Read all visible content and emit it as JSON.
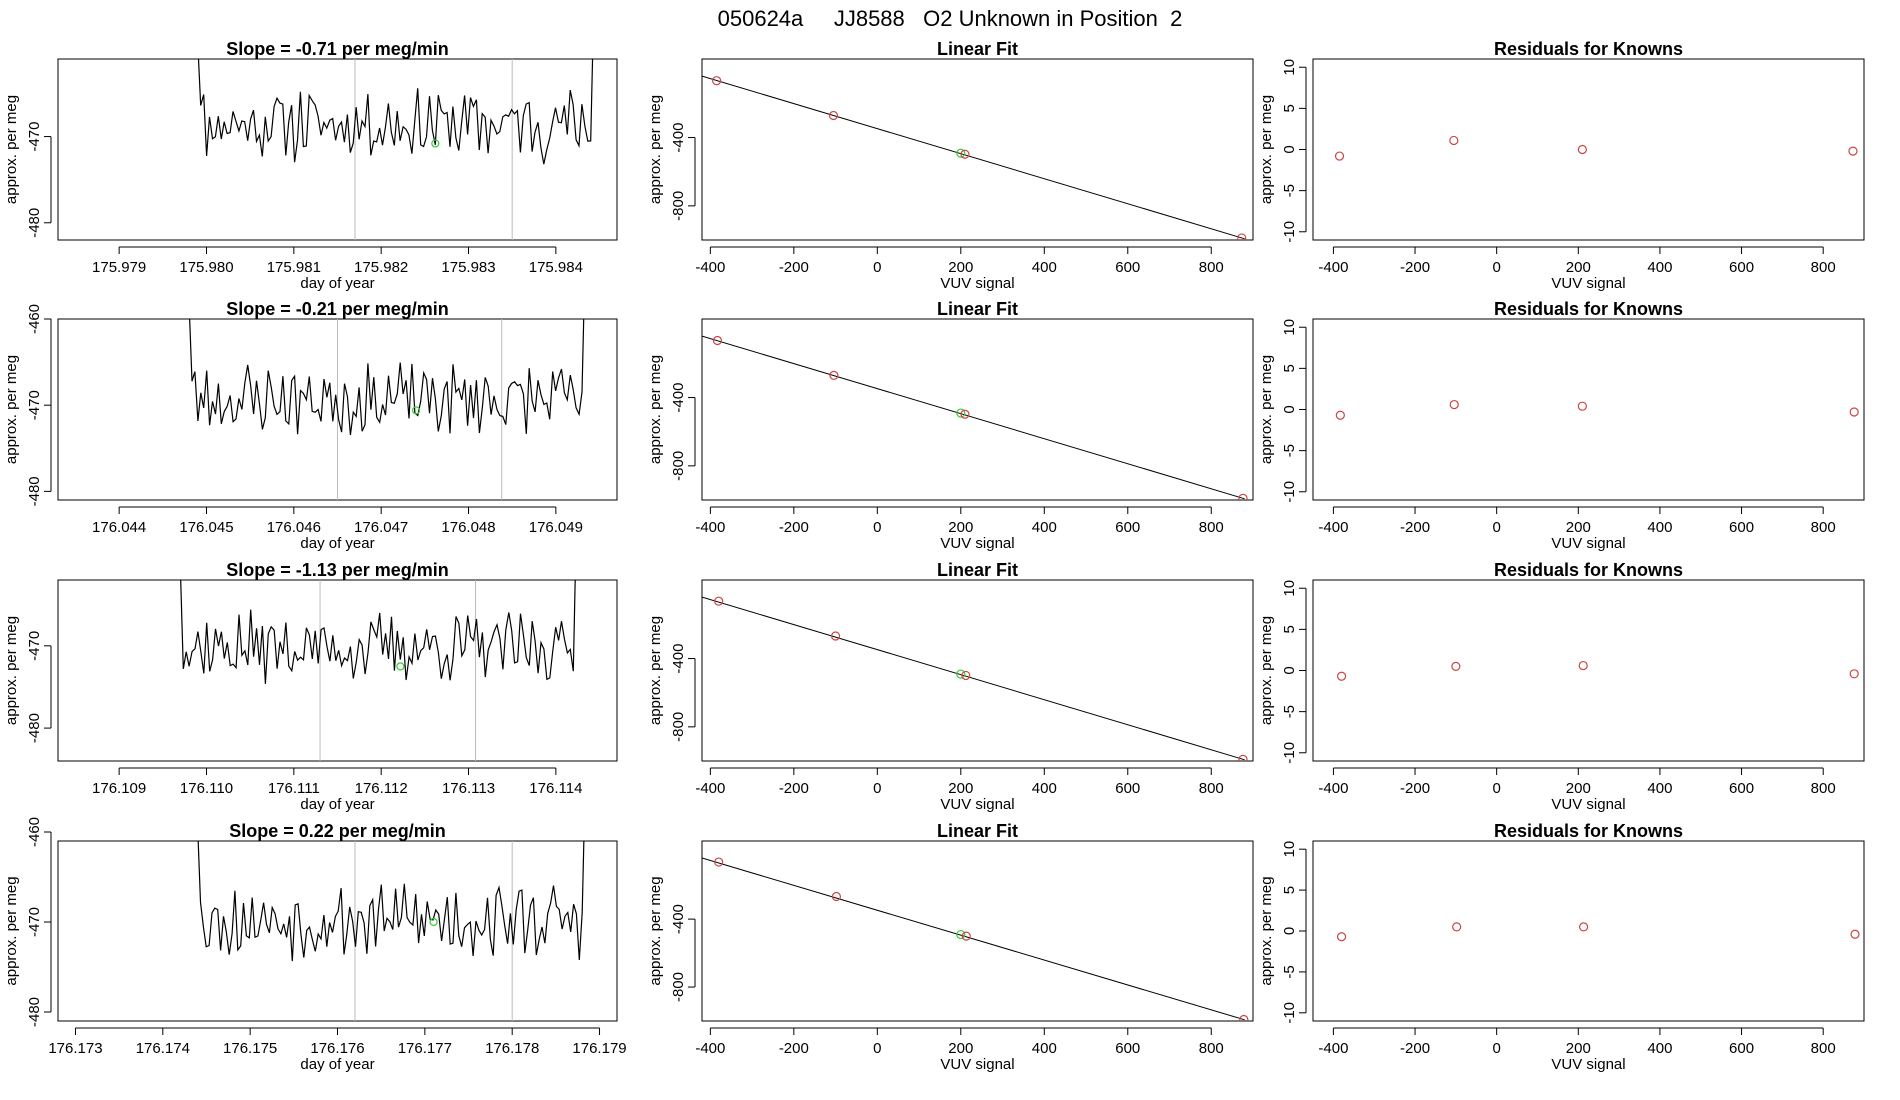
{
  "page_title": "050624a     JJ8588   O2 Unknown in Position  2",
  "colors": {
    "line": "#000000",
    "known_point": "#cc4444",
    "unknown_point": "#33cc33",
    "marker_line": "#bbbbbb"
  },
  "chart_data": [
    {
      "type": "line",
      "title": "Slope =  -0.71  per meg/min",
      "xlabel": "day of year",
      "ylabel": "approx. per meg",
      "xlim": [
        175.9783,
        175.9847
      ],
      "ylim": [
        -482,
        -461
      ],
      "xticks": [
        "175.979",
        "175.980",
        "175.981",
        "175.982",
        "175.983",
        "175.984"
      ],
      "xtick_values": [
        175.979,
        175.98,
        175.981,
        175.982,
        175.983,
        175.984
      ],
      "yticks": [
        "-480",
        "-470"
      ],
      "ytick_values": [
        -480,
        -470
      ],
      "x_start": 175.9798,
      "x_end": 175.9845,
      "baseline": -468.5,
      "amplitude": 3.5,
      "seed": 11,
      "markers": [
        175.9817,
        175.9835
      ],
      "unknown_point": {
        "x": 175.98262,
        "y": -470.8
      }
    },
    {
      "type": "line",
      "title": "Slope =  -0.21  per meg/min",
      "xlabel": "day of year",
      "ylabel": "approx. per meg",
      "xlim": [
        176.0433,
        176.0497
      ],
      "ylim": [
        -481,
        -460
      ],
      "xticks": [
        "176.044",
        "176.045",
        "176.046",
        "176.047",
        "176.048",
        "176.049"
      ],
      "xtick_values": [
        176.044,
        176.045,
        176.046,
        176.047,
        176.048,
        176.049
      ],
      "yticks": [
        "-480",
        "-470",
        "-460"
      ],
      "ytick_values": [
        -480,
        -470,
        -460
      ],
      "x_start": 176.0447,
      "x_end": 176.0494,
      "baseline": -469.3,
      "amplitude": 3.5,
      "seed": 23,
      "markers": [
        176.0465,
        176.04838
      ],
      "unknown_point": {
        "x": 176.0474,
        "y": -470.6
      }
    },
    {
      "type": "line",
      "title": "Slope =  -1.13  per meg/min",
      "xlabel": "day of year",
      "ylabel": "approx. per meg",
      "xlim": [
        176.1083,
        176.1147
      ],
      "ylim": [
        -484,
        -462
      ],
      "xticks": [
        "176.109",
        "176.110",
        "176.111",
        "176.112",
        "176.113",
        "176.114"
      ],
      "xtick_values": [
        176.109,
        176.11,
        176.111,
        176.112,
        176.113,
        176.114
      ],
      "yticks": [
        "-480",
        "-470"
      ],
      "ytick_values": [
        -480,
        -470
      ],
      "x_start": 176.1096,
      "x_end": 176.1143,
      "baseline": -470.2,
      "amplitude": 3.5,
      "seed": 37,
      "markers": [
        176.1113,
        176.11308
      ],
      "unknown_point": {
        "x": 176.11222,
        "y": -472.5
      }
    },
    {
      "type": "line",
      "title": "Slope =  0.22  per meg/min",
      "xlabel": "day of year",
      "ylabel": "approx. per meg",
      "xlim": [
        176.1728,
        176.1792
      ],
      "ylim": [
        -481,
        -461
      ],
      "xticks": [
        "176.173",
        "176.174",
        "176.175",
        "176.176",
        "176.177",
        "176.178",
        "176.179"
      ],
      "xtick_values": [
        176.173,
        176.174,
        176.175,
        176.176,
        176.177,
        176.178,
        176.179
      ],
      "yticks": [
        "-480",
        "-470",
        "-460"
      ],
      "ytick_values": [
        -480,
        -470,
        -460
      ],
      "x_start": 176.1743,
      "x_end": 176.1789,
      "baseline": -469.8,
      "amplitude": 3.4,
      "seed": 53,
      "markers": [
        176.1762,
        176.178
      ],
      "unknown_point": {
        "x": 176.1771,
        "y": -470.0
      }
    },
    {
      "type": "scatter",
      "title": "Linear Fit",
      "xlabel": "VUV signal",
      "ylabel": "approx. per meg",
      "xlim": [
        -420,
        900
      ],
      "ylim": [
        -1000,
        60
      ],
      "xticks": [
        "-400",
        "-200",
        "0",
        "200",
        "400",
        "600",
        "800"
      ],
      "xtick_values": [
        -400,
        -200,
        0,
        200,
        400,
        600,
        800
      ],
      "yticks": [
        "-800",
        "-400"
      ],
      "ytick_values": [
        -800,
        -400
      ],
      "fit_line": {
        "x": [
          -420,
          880
        ],
        "y": [
          -40,
          -993
        ]
      },
      "known_points": [
        {
          "x": -385,
          "y": -67
        },
        {
          "x": -105,
          "y": -271
        },
        {
          "x": 210,
          "y": -498
        },
        {
          "x": 873,
          "y": -988
        }
      ],
      "unknown_point": {
        "x": 200,
        "y": -492
      }
    },
    {
      "type": "scatter",
      "title": "Linear Fit",
      "xlabel": "VUV signal",
      "ylabel": "approx. per meg",
      "xlim": [
        -420,
        900
      ],
      "ylim": [
        -1000,
        60
      ],
      "xticks": [
        "-400",
        "-200",
        "0",
        "200",
        "400",
        "600",
        "800"
      ],
      "xtick_values": [
        -400,
        -200,
        0,
        200,
        400,
        600,
        800
      ],
      "yticks": [
        "-800",
        "-400"
      ],
      "ytick_values": [
        -800,
        -400
      ],
      "fit_line": {
        "x": [
          -420,
          880
        ],
        "y": [
          -40,
          -993
        ]
      },
      "known_points": [
        {
          "x": -383,
          "y": -66
        },
        {
          "x": -104,
          "y": -270
        },
        {
          "x": 210,
          "y": -498
        },
        {
          "x": 876,
          "y": -990
        }
      ],
      "unknown_point": {
        "x": 200,
        "y": -491
      }
    },
    {
      "type": "scatter",
      "title": "Linear Fit",
      "xlabel": "VUV signal",
      "ylabel": "approx. per meg",
      "xlim": [
        -420,
        900
      ],
      "ylim": [
        -1000,
        60
      ],
      "xticks": [
        "-400",
        "-200",
        "0",
        "200",
        "400",
        "600",
        "800"
      ],
      "xtick_values": [
        -400,
        -200,
        0,
        200,
        400,
        600,
        800
      ],
      "yticks": [
        "-800",
        "-400"
      ],
      "ytick_values": [
        -800,
        -400
      ],
      "fit_line": {
        "x": [
          -420,
          880
        ],
        "y": [
          -40,
          -993
        ]
      },
      "known_points": [
        {
          "x": -380,
          "y": -64
        },
        {
          "x": -100,
          "y": -268
        },
        {
          "x": 212,
          "y": -499
        },
        {
          "x": 876,
          "y": -990
        }
      ],
      "unknown_point": {
        "x": 200,
        "y": -491
      }
    },
    {
      "type": "scatter",
      "title": "Linear Fit",
      "xlabel": "VUV signal",
      "ylabel": "approx. per meg",
      "xlim": [
        -420,
        900
      ],
      "ylim": [
        -1000,
        60
      ],
      "xticks": [
        "-400",
        "-200",
        "0",
        "200",
        "400",
        "600",
        "800"
      ],
      "xtick_values": [
        -400,
        -200,
        0,
        200,
        400,
        600,
        800
      ],
      "yticks": [
        "-800",
        "-400"
      ],
      "ytick_values": [
        -800,
        -400
      ],
      "fit_line": {
        "x": [
          -420,
          880
        ],
        "y": [
          -40,
          -993
        ]
      },
      "known_points": [
        {
          "x": -380,
          "y": -64
        },
        {
          "x": -98,
          "y": -267
        },
        {
          "x": 213,
          "y": -500
        },
        {
          "x": 878,
          "y": -991
        }
      ],
      "unknown_point": {
        "x": 200,
        "y": -491
      }
    },
    {
      "type": "scatter",
      "title": "Residuals for Knowns",
      "xlabel": "VUV signal",
      "ylabel": "approx. per meg",
      "xlim": [
        -450,
        900
      ],
      "ylim": [
        -11,
        11
      ],
      "xticks": [
        "-400",
        "-200",
        "0",
        "200",
        "400",
        "600",
        "800"
      ],
      "xtick_values": [
        -400,
        -200,
        0,
        200,
        400,
        600,
        800
      ],
      "yticks": [
        "-10",
        "-5",
        "0",
        "5",
        "10"
      ],
      "ytick_values": [
        -10,
        -5,
        0,
        5,
        10
      ],
      "known_points": [
        {
          "x": -385,
          "y": -0.8
        },
        {
          "x": -105,
          "y": 1.1
        },
        {
          "x": 210,
          "y": 0.0
        },
        {
          "x": 873,
          "y": -0.2
        }
      ]
    },
    {
      "type": "scatter",
      "title": "Residuals for Knowns",
      "xlabel": "VUV signal",
      "ylabel": "approx. per meg",
      "xlim": [
        -450,
        900
      ],
      "ylim": [
        -11,
        11
      ],
      "xticks": [
        "-400",
        "-200",
        "0",
        "200",
        "400",
        "600",
        "800"
      ],
      "xtick_values": [
        -400,
        -200,
        0,
        200,
        400,
        600,
        800
      ],
      "yticks": [
        "-10",
        "-5",
        "0",
        "5",
        "10"
      ],
      "ytick_values": [
        -10,
        -5,
        0,
        5,
        10
      ],
      "known_points": [
        {
          "x": -383,
          "y": -0.7
        },
        {
          "x": -104,
          "y": 0.6
        },
        {
          "x": 210,
          "y": 0.4
        },
        {
          "x": 876,
          "y": -0.3
        }
      ]
    },
    {
      "type": "scatter",
      "title": "Residuals for Knowns",
      "xlabel": "VUV signal",
      "ylabel": "approx. per meg",
      "xlim": [
        -450,
        900
      ],
      "ylim": [
        -11,
        11
      ],
      "xticks": [
        "-400",
        "-200",
        "0",
        "200",
        "400",
        "600",
        "800"
      ],
      "xtick_values": [
        -400,
        -200,
        0,
        200,
        400,
        600,
        800
      ],
      "yticks": [
        "-10",
        "-5",
        "0",
        "5",
        "10"
      ],
      "ytick_values": [
        -10,
        -5,
        0,
        5,
        10
      ],
      "known_points": [
        {
          "x": -380,
          "y": -0.7
        },
        {
          "x": -100,
          "y": 0.5
        },
        {
          "x": 212,
          "y": 0.6
        },
        {
          "x": 876,
          "y": -0.4
        }
      ]
    },
    {
      "type": "scatter",
      "title": "Residuals for Knowns",
      "xlabel": "VUV signal",
      "ylabel": "approx. per meg",
      "xlim": [
        -450,
        900
      ],
      "ylim": [
        -11,
        11
      ],
      "xticks": [
        "-400",
        "-200",
        "0",
        "200",
        "400",
        "600",
        "800"
      ],
      "xtick_values": [
        -400,
        -200,
        0,
        200,
        400,
        600,
        800
      ],
      "yticks": [
        "-10",
        "-5",
        "0",
        "5",
        "10"
      ],
      "ytick_values": [
        -10,
        -5,
        0,
        5,
        10
      ],
      "known_points": [
        {
          "x": -380,
          "y": -0.7
        },
        {
          "x": -98,
          "y": 0.5
        },
        {
          "x": 213,
          "y": 0.5
        },
        {
          "x": 878,
          "y": -0.4
        }
      ]
    }
  ]
}
